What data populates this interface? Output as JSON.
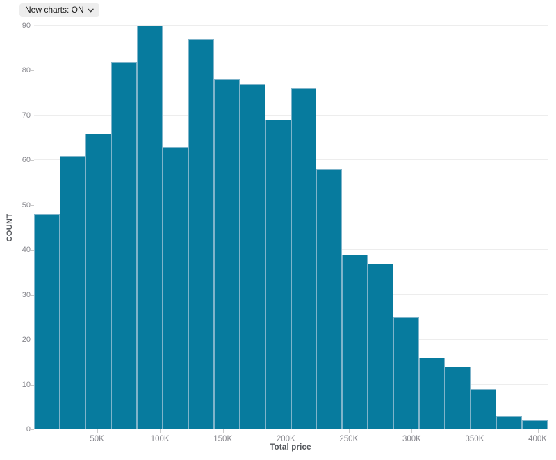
{
  "controls": {
    "new_charts_toggle": {
      "label": "New charts: ON",
      "icon": "chevron-down-icon"
    }
  },
  "chart_data": {
    "type": "histogram",
    "title": "",
    "xlabel": "Total price",
    "ylabel": "COUNT",
    "values": [
      48,
      61,
      66,
      82,
      90,
      63,
      87,
      78,
      77,
      69,
      76,
      58,
      39,
      37,
      25,
      16,
      14,
      9,
      3,
      2
    ],
    "bin_start": 0,
    "bin_width": 20400,
    "xlim": [
      0,
      408000
    ],
    "ylim": [
      0,
      90
    ],
    "grid": "horizontal",
    "legend": "none",
    "y_ticks": [
      0,
      10,
      20,
      30,
      40,
      50,
      60,
      70,
      80,
      90
    ],
    "x_ticks": [
      {
        "value": 50000,
        "label": "50K"
      },
      {
        "value": 100000,
        "label": "100K"
      },
      {
        "value": 150000,
        "label": "150K"
      },
      {
        "value": 200000,
        "label": "200K"
      },
      {
        "value": 250000,
        "label": "250K"
      },
      {
        "value": 300000,
        "label": "300K"
      },
      {
        "value": 350000,
        "label": "350K"
      },
      {
        "value": 400000,
        "label": "400K"
      }
    ],
    "colors": {
      "bar_fill": "#077B9E",
      "bar_stroke": "#7FB4CA",
      "gridline": "#ededed",
      "axis_line": "#c6c9cc",
      "tick_mark": "#c9c9c9",
      "tick_label": "#87878d",
      "axis_title": "#54575c",
      "control_bg": "#ededed",
      "control_text": "#171717"
    }
  }
}
